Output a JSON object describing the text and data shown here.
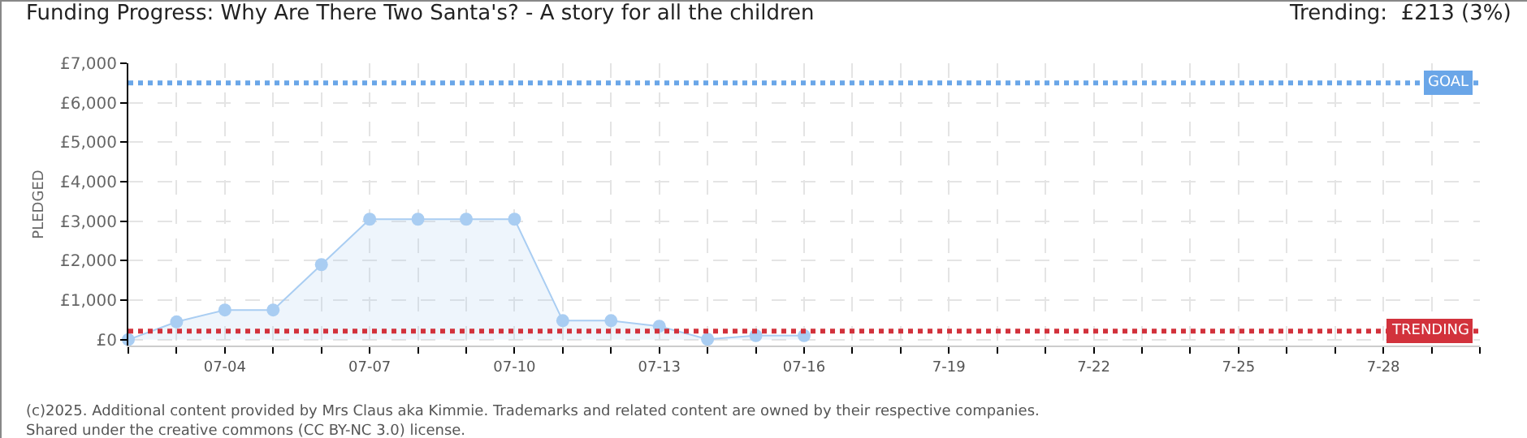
{
  "chart_data": {
    "type": "area",
    "title": "Funding Progress: Why Are There Two Santa's? - A story for all the children",
    "subtitle": "Trending:  £213 (3%)",
    "ylabel": "PLEDGED",
    "x": [
      "--07-02",
      "--07-03",
      "--07-04",
      "--07-05",
      "--07-06",
      "--07-07",
      "--07-08",
      "--07-09",
      "--07-10",
      "--07-11",
      "--07-12",
      "--07-13",
      "--07-14",
      "--07-15",
      "--07-16"
    ],
    "series": [
      {
        "color": "#a9cdf2",
        "values": [
          0,
          450,
          750,
          750,
          1900,
          3050,
          3050,
          3050,
          3050,
          480,
          480,
          340,
          10,
          100,
          100
        ]
      }
    ],
    "xlim": [
      "--07-02",
      "--07-30"
    ],
    "xticks": [
      {
        "value": "--07-02",
        "label": null
      },
      {
        "value": "--07-03",
        "label": null
      },
      {
        "value": "--07-04",
        "label": "07-04"
      },
      {
        "value": "--07-05",
        "label": null
      },
      {
        "value": "--07-06",
        "label": null
      },
      {
        "value": "--07-07",
        "label": "07-07"
      },
      {
        "value": "--07-08",
        "label": null
      },
      {
        "value": "--07-09",
        "label": null
      },
      {
        "value": "--07-10",
        "label": "07-10"
      },
      {
        "value": "--07-11",
        "label": null
      },
      {
        "value": "--07-12",
        "label": null
      },
      {
        "value": "--07-13",
        "label": "07-13"
      },
      {
        "value": "--07-14",
        "label": null
      },
      {
        "value": "--07-15",
        "label": null
      },
      {
        "value": "--07-16",
        "label": "07-16"
      },
      {
        "value": "--07-17",
        "label": null
      },
      {
        "value": "--07-18",
        "label": null
      },
      {
        "value": "--07-19",
        "label": "7-19"
      },
      {
        "value": "--07-20",
        "label": null
      },
      {
        "value": "--07-21",
        "label": null
      },
      {
        "value": "--07-22",
        "label": "7-22"
      },
      {
        "value": "--07-23",
        "label": null
      },
      {
        "value": "--07-24",
        "label": null
      },
      {
        "value": "--07-25",
        "label": "7-25"
      },
      {
        "value": "--07-26",
        "label": null
      },
      {
        "value": "--07-27",
        "label": null
      },
      {
        "value": "--07-28",
        "label": "7-28"
      },
      {
        "value": "--07-29",
        "label": null
      },
      {
        "value": "--07-30",
        "label": null
      }
    ],
    "ylim": [
      -150,
      7000
    ],
    "yticks": [
      {
        "value": 0,
        "label": "£0"
      },
      {
        "value": 1000,
        "label": "£1,000"
      },
      {
        "value": 2000,
        "label": "£2,000"
      },
      {
        "value": 3000,
        "label": "£3,000"
      },
      {
        "value": 4000,
        "label": "£4,000"
      },
      {
        "value": 5000,
        "label": "£5,000"
      },
      {
        "value": 6000,
        "label": "£6,000"
      },
      {
        "value": 7000,
        "label": "£7,000"
      }
    ],
    "ref_lines": [
      {
        "axis": "y",
        "value": 6500,
        "label": "GOAL",
        "color": "#6aa6e8",
        "line_style": "dotted"
      },
      {
        "axis": "y",
        "value": 213,
        "label": "TRENDING",
        "color": "#d2323c",
        "line_style": "dotted"
      }
    ],
    "annotations": [
      "(c)2025. Additional content provided by Mrs Claus aka Kimmie. Trademarks and related content are owned by their respective companies.",
      "Shared under the creative commons (CC BY-NC 3.0) license."
    ],
    "grid": true,
    "marker": "circle",
    "line_style": "solid"
  }
}
